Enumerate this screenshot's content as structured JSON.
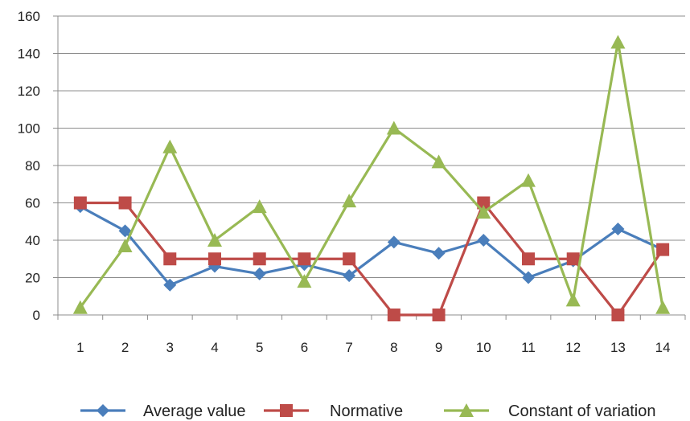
{
  "chart_data": {
    "type": "line",
    "x": [
      1,
      2,
      3,
      4,
      5,
      6,
      7,
      8,
      9,
      10,
      11,
      12,
      13,
      14
    ],
    "ylim": [
      0,
      160
    ],
    "yticks": [
      0,
      20,
      40,
      60,
      80,
      100,
      120,
      140,
      160
    ],
    "grid": "horizontal",
    "legend_position": "bottom",
    "series": [
      {
        "name": "Average value",
        "color": "#4a7ebb",
        "marker": "diamond",
        "values": [
          58,
          45,
          16,
          26,
          22,
          27,
          21,
          39,
          33,
          40,
          20,
          29,
          46,
          35
        ]
      },
      {
        "name": "Normative",
        "color": "#be4b48",
        "marker": "square",
        "values": [
          60,
          60,
          30,
          30,
          30,
          30,
          30,
          0,
          0,
          60,
          30,
          30,
          0,
          35
        ]
      },
      {
        "name": "Constant of variation",
        "color": "#98b954",
        "marker": "triangle",
        "values": [
          4,
          37,
          90,
          40,
          58,
          18,
          61,
          100,
          82,
          55,
          72,
          8,
          146,
          4
        ]
      }
    ]
  }
}
